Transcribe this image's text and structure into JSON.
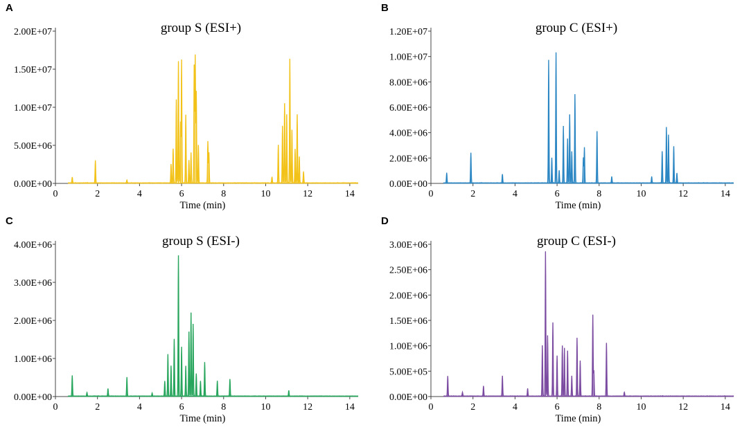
{
  "chart_data": [
    {
      "type": "line",
      "panel": "A",
      "title": "group S (ESI+)",
      "xlabel": "Time (min)",
      "ylabel": "",
      "xlim": [
        0,
        14.4
      ],
      "ylim": [
        0,
        20000000
      ],
      "x_ticks": [
        0,
        2,
        4,
        6,
        8,
        10,
        12,
        14
      ],
      "x_tick_labels": [
        "0",
        "2",
        "4",
        "6",
        "8",
        "10",
        "12",
        "14"
      ],
      "y_ticks": [
        0,
        5000000,
        10000000,
        15000000,
        20000000
      ],
      "y_tick_labels": [
        "0.00E+00",
        "5.00E+06",
        "1.00E+07",
        "1.50E+07",
        "2.00E+07"
      ],
      "color": "#F2C219",
      "peaks": [
        [
          0.8,
          800000
        ],
        [
          1.9,
          3000000
        ],
        [
          3.4,
          400000
        ],
        [
          5.5,
          2500000
        ],
        [
          5.6,
          4500000
        ],
        [
          5.75,
          11000000
        ],
        [
          5.85,
          16000000
        ],
        [
          5.95,
          8000000
        ],
        [
          6.0,
          16200000
        ],
        [
          6.2,
          9000000
        ],
        [
          6.35,
          3000000
        ],
        [
          6.45,
          4000000
        ],
        [
          6.6,
          15500000
        ],
        [
          6.65,
          16700000
        ],
        [
          6.7,
          12000000
        ],
        [
          6.8,
          5000000
        ],
        [
          7.25,
          5500000
        ],
        [
          7.3,
          4000000
        ],
        [
          10.3,
          800000
        ],
        [
          10.6,
          5000000
        ],
        [
          10.8,
          7500000
        ],
        [
          10.9,
          10500000
        ],
        [
          11.0,
          9000000
        ],
        [
          11.15,
          16300000
        ],
        [
          11.25,
          7000000
        ],
        [
          11.4,
          4500000
        ],
        [
          11.5,
          9000000
        ],
        [
          11.6,
          3500000
        ],
        [
          11.8,
          1500000
        ]
      ]
    },
    {
      "type": "line",
      "panel": "B",
      "title": "group C (ESI+)",
      "xlabel": "Time (min)",
      "ylabel": "",
      "xlim": [
        0,
        14.4
      ],
      "ylim": [
        0,
        12000000
      ],
      "x_ticks": [
        0,
        2,
        4,
        6,
        8,
        10,
        12,
        14
      ],
      "x_tick_labels": [
        "0",
        "2",
        "4",
        "6",
        "8",
        "10",
        "12",
        "14"
      ],
      "y_ticks": [
        0,
        2000000,
        4000000,
        6000000,
        8000000,
        10000000,
        12000000
      ],
      "y_tick_labels": [
        "0.00E+00",
        "2.00E+06",
        "4.00E+06",
        "6.00E+06",
        "8.00E+06",
        "1.00E+07",
        "1.20E+07"
      ],
      "color": "#2B86C3",
      "peaks": [
        [
          0.75,
          800000
        ],
        [
          1.9,
          2400000
        ],
        [
          3.4,
          700000
        ],
        [
          5.6,
          9700000
        ],
        [
          5.75,
          2000000
        ],
        [
          5.95,
          10300000
        ],
        [
          6.1,
          1000000
        ],
        [
          6.3,
          4500000
        ],
        [
          6.5,
          3500000
        ],
        [
          6.6,
          5400000
        ],
        [
          6.7,
          2500000
        ],
        [
          6.85,
          7000000
        ],
        [
          7.25,
          2000000
        ],
        [
          7.3,
          2800000
        ],
        [
          7.9,
          4100000
        ],
        [
          8.6,
          500000
        ],
        [
          10.5,
          500000
        ],
        [
          11.0,
          2500000
        ],
        [
          11.2,
          4400000
        ],
        [
          11.3,
          3800000
        ],
        [
          11.55,
          2900000
        ],
        [
          11.7,
          800000
        ]
      ]
    },
    {
      "type": "line",
      "panel": "C",
      "title": "group S (ESI-)",
      "xlabel": "Time (min)",
      "ylabel": "",
      "xlim": [
        0,
        14.4
      ],
      "ylim": [
        0,
        4000000
      ],
      "x_ticks": [
        0,
        2,
        4,
        6,
        8,
        10,
        12,
        14
      ],
      "x_tick_labels": [
        "0",
        "2",
        "4",
        "6",
        "8",
        "10",
        "12",
        "14"
      ],
      "y_ticks": [
        0,
        1000000,
        2000000,
        3000000,
        4000000
      ],
      "y_tick_labels": [
        "0.00E+00",
        "1.00E+06",
        "2.00E+06",
        "3.00E+06",
        "4.00E+06"
      ],
      "color": "#27A55C",
      "peaks": [
        [
          0.8,
          550000
        ],
        [
          1.5,
          100000
        ],
        [
          2.5,
          200000
        ],
        [
          3.4,
          500000
        ],
        [
          4.6,
          80000
        ],
        [
          5.2,
          400000
        ],
        [
          5.35,
          1100000
        ],
        [
          5.5,
          800000
        ],
        [
          5.65,
          1500000
        ],
        [
          5.85,
          3700000
        ],
        [
          6.0,
          1300000
        ],
        [
          6.2,
          800000
        ],
        [
          6.35,
          1700000
        ],
        [
          6.45,
          2200000
        ],
        [
          6.55,
          1900000
        ],
        [
          6.7,
          600000
        ],
        [
          6.9,
          400000
        ],
        [
          7.1,
          900000
        ],
        [
          7.7,
          400000
        ],
        [
          8.3,
          450000
        ],
        [
          11.1,
          150000
        ]
      ]
    },
    {
      "type": "line",
      "panel": "D",
      "title": "group C (ESI-)",
      "xlabel": "Time (min)",
      "ylabel": "",
      "xlim": [
        0,
        14.4
      ],
      "ylim": [
        0,
        3000000
      ],
      "x_ticks": [
        0,
        2,
        4,
        6,
        8,
        10,
        12,
        14
      ],
      "x_tick_labels": [
        "0",
        "2",
        "4",
        "6",
        "8",
        "10",
        "12",
        "14"
      ],
      "y_ticks": [
        0,
        500000,
        1000000,
        1500000,
        2000000,
        2500000,
        3000000
      ],
      "y_tick_labels": [
        "0.00E+00",
        "5.00E+05",
        "1.00E+06",
        "1.50E+06",
        "2.00E+06",
        "2.50E+06",
        "3.00E+06"
      ],
      "color": "#7B4BA1",
      "peaks": [
        [
          0.8,
          400000
        ],
        [
          1.5,
          80000
        ],
        [
          2.5,
          200000
        ],
        [
          3.4,
          400000
        ],
        [
          4.6,
          150000
        ],
        [
          5.3,
          1000000
        ],
        [
          5.45,
          2850000
        ],
        [
          5.55,
          1200000
        ],
        [
          5.8,
          1450000
        ],
        [
          6.0,
          800000
        ],
        [
          6.25,
          1000000
        ],
        [
          6.35,
          950000
        ],
        [
          6.5,
          900000
        ],
        [
          6.7,
          400000
        ],
        [
          6.95,
          1150000
        ],
        [
          7.1,
          700000
        ],
        [
          7.7,
          1600000
        ],
        [
          7.75,
          500000
        ],
        [
          8.35,
          1050000
        ],
        [
          9.2,
          80000
        ]
      ]
    }
  ]
}
